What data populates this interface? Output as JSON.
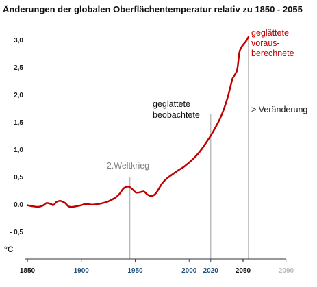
{
  "chart_data": {
    "type": "line",
    "title": "Änderungen der globalen Oberflächentemperatur relativ zu 1850 - 2055",
    "xlim": [
      1850,
      2090
    ],
    "ylim": [
      -0.5,
      3.0
    ],
    "y_ticks": [
      "3,0",
      "2,5",
      "2,0",
      "1,5",
      "1,0",
      "0,5",
      "0.0",
      "- 0,5"
    ],
    "y_tick_values": [
      3.0,
      2.5,
      2.0,
      1.5,
      1.0,
      0.5,
      0.0,
      -0.5
    ],
    "ylabel": "°C",
    "x_ticks": [
      {
        "label": "1850",
        "value": 1850,
        "color": "#111111"
      },
      {
        "label": "1900",
        "value": 1900,
        "color": "#1f4e79"
      },
      {
        "label": "1950",
        "value": 1950,
        "color": "#1f4e79"
      },
      {
        "label": "2000",
        "value": 2000,
        "color": "#1f4e79"
      },
      {
        "label": "2020",
        "value": 2020,
        "color": "#1f4e79"
      },
      {
        "label": "2050",
        "value": 2050,
        "color": "#111111"
      },
      {
        "label": "2090",
        "value": 2090,
        "color": "#bbbbbb"
      }
    ],
    "series": [
      {
        "name": "geglättete beobachtete / voraus-berechnete",
        "color": "#c00000",
        "x": [
          1850,
          1855,
          1860,
          1864,
          1868,
          1872,
          1874,
          1877,
          1880,
          1882,
          1885,
          1888,
          1890,
          1892,
          1895,
          1900,
          1903,
          1906,
          1910,
          1915,
          1920,
          1925,
          1930,
          1933,
          1936,
          1938,
          1940,
          1943,
          1945,
          1948,
          1951,
          1955,
          1958,
          1961,
          1964,
          1967,
          1970,
          1975,
          1980,
          1985,
          1990,
          1995,
          2000,
          2005,
          2010,
          2015,
          2020,
          2025,
          2030,
          2035,
          2038,
          2040,
          2042,
          2044,
          2045,
          2046,
          2047,
          2049,
          2051,
          2053,
          2055
        ],
        "y": [
          -0.02,
          -0.04,
          -0.05,
          -0.03,
          0.02,
          0.0,
          -0.02,
          0.04,
          0.06,
          0.05,
          0.02,
          -0.04,
          -0.05,
          -0.05,
          -0.04,
          -0.02,
          0.0,
          0.0,
          -0.01,
          0.0,
          0.02,
          0.05,
          0.1,
          0.14,
          0.2,
          0.26,
          0.3,
          0.32,
          0.31,
          0.26,
          0.21,
          0.22,
          0.23,
          0.18,
          0.15,
          0.16,
          0.22,
          0.38,
          0.48,
          0.55,
          0.62,
          0.68,
          0.76,
          0.85,
          0.96,
          1.1,
          1.25,
          1.42,
          1.62,
          1.9,
          2.12,
          2.28,
          2.35,
          2.42,
          2.5,
          2.68,
          2.8,
          2.88,
          2.93,
          2.98,
          3.05
        ]
      }
    ],
    "reference_lines": [
      {
        "x": 1945,
        "y_top": 0.5
      },
      {
        "x": 2020,
        "y_top": 1.65
      },
      {
        "x": 2055,
        "y_top": 3.0
      }
    ],
    "annotations": [
      {
        "id": "ww2",
        "lines": [
          "2.Weltkrieg"
        ],
        "color": "#7f7f7f"
      },
      {
        "id": "observed",
        "lines": [
          "geglättete",
          "beobachtete"
        ],
        "color": "#111111"
      },
      {
        "id": "change",
        "lines": [
          "> Veränderung"
        ],
        "color": "#111111"
      },
      {
        "id": "projected",
        "lines": [
          "geglättete",
          "voraus-",
          "berechnete"
        ],
        "color": "#c00000"
      }
    ],
    "grid": false
  }
}
